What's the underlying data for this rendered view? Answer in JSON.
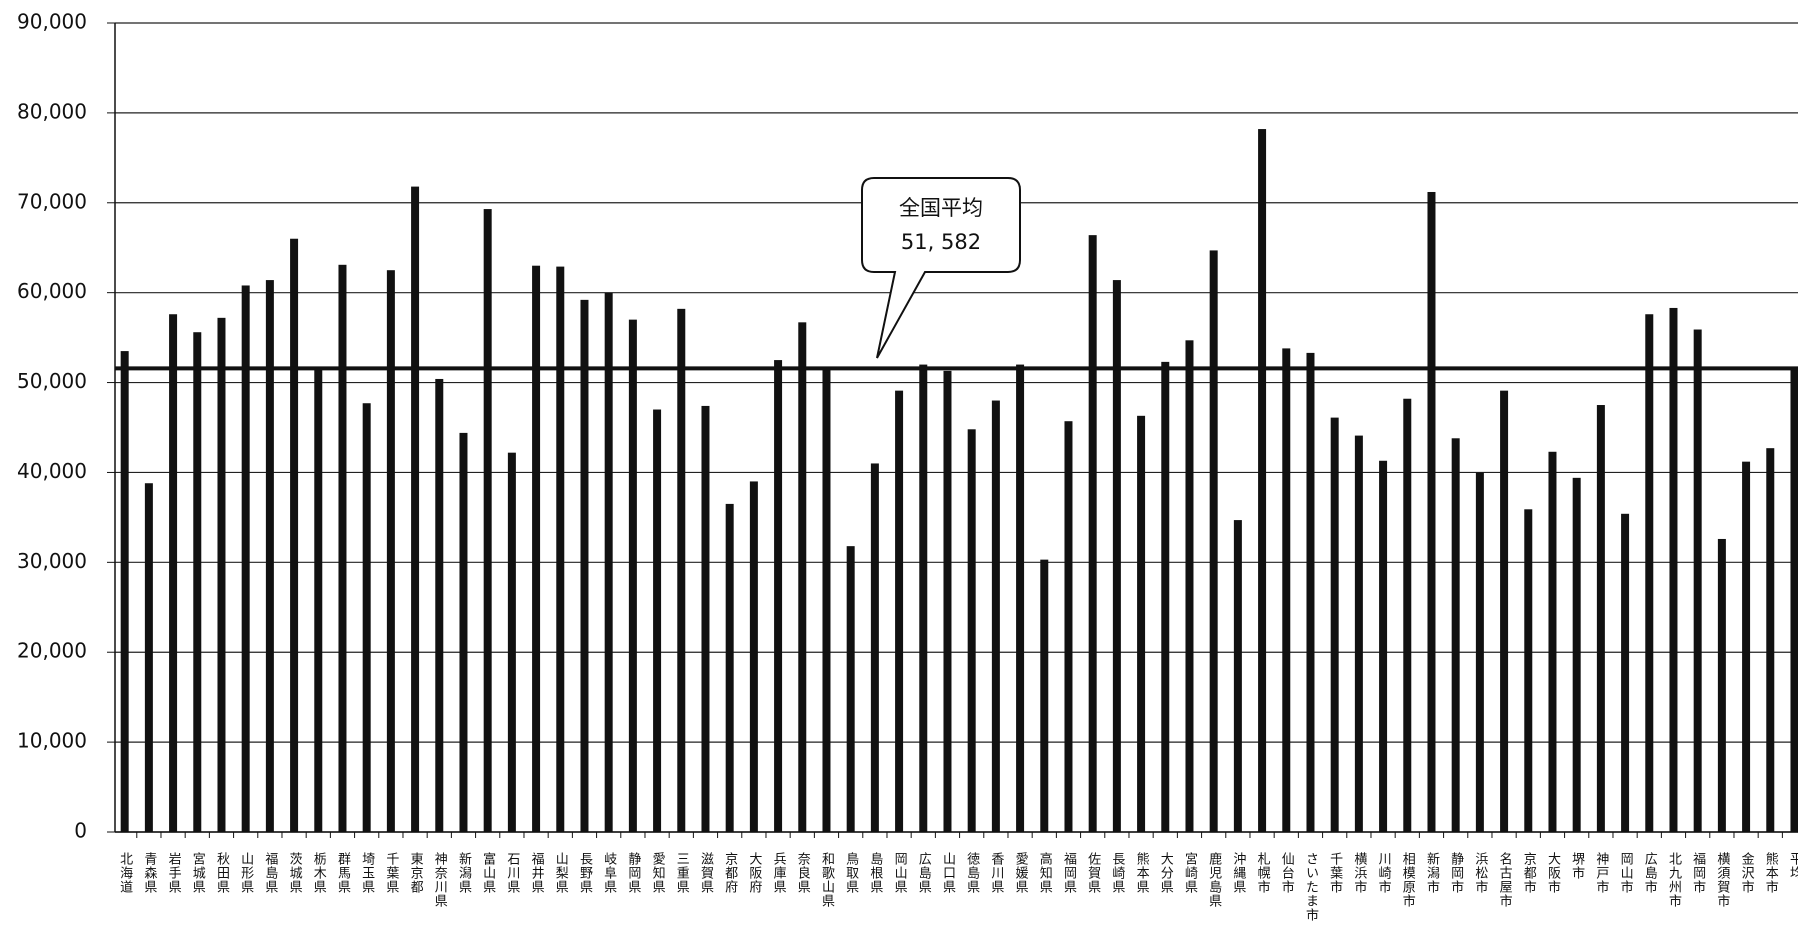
{
  "chart_data": {
    "type": "bar",
    "categories": [
      "北海道",
      "青森県",
      "岩手県",
      "宮城県",
      "秋田県",
      "山形県",
      "福島県",
      "茨城県",
      "栃木県",
      "群馬県",
      "埼玉県",
      "千葉県",
      "東京都",
      "神奈川県",
      "新潟県",
      "富山県",
      "石川県",
      "福井県",
      "山梨県",
      "長野県",
      "岐阜県",
      "静岡県",
      "愛知県",
      "三重県",
      "滋賀県",
      "京都府",
      "大阪府",
      "兵庫県",
      "奈良県",
      "和歌山県",
      "鳥取県",
      "島根県",
      "岡山県",
      "広島県",
      "山口県",
      "徳島県",
      "香川県",
      "愛媛県",
      "高知県",
      "福岡県",
      "佐賀県",
      "長崎県",
      "熊本県",
      "大分県",
      "宮崎県",
      "鹿児島県",
      "沖縄県",
      "札幌市",
      "仙台市",
      "さいたま市",
      "千葉市",
      "横浜市",
      "川崎市",
      "相模原市",
      "新潟市",
      "静岡市",
      "浜松市",
      "名古屋市",
      "京都市",
      "大阪市",
      "堺市",
      "神戸市",
      "岡山市",
      "広島市",
      "北九州市",
      "福岡市",
      "横須賀市",
      "金沢市",
      "熊本市",
      "平均"
    ],
    "values": [
      53500,
      38800,
      57600,
      55600,
      57200,
      60800,
      61400,
      66000,
      51700,
      63100,
      47700,
      62500,
      71800,
      50400,
      44400,
      69300,
      42200,
      63000,
      62900,
      59200,
      60000,
      57000,
      47000,
      58200,
      47400,
      36500,
      39000,
      52500,
      56700,
      51700,
      31800,
      41000,
      49100,
      52000,
      51300,
      44800,
      48000,
      52000,
      30300,
      45700,
      66400,
      61400,
      46300,
      52300,
      54700,
      64700,
      34700,
      78200,
      53800,
      53300,
      46100,
      44100,
      41300,
      48200,
      71200,
      43800,
      40000,
      49100,
      35900,
      42300,
      39400,
      47500,
      35400,
      57600,
      58300,
      55900,
      32600,
      41200,
      42700,
      51600
    ],
    "color": "#111111",
    "ylim": [
      0,
      90000
    ],
    "yticks": [
      {
        "value": 0,
        "label": "0"
      },
      {
        "value": 10000,
        "label": "10,000"
      },
      {
        "value": 20000,
        "label": "20,000"
      },
      {
        "value": 30000,
        "label": "30,000"
      },
      {
        "value": 40000,
        "label": "40,000"
      },
      {
        "value": 50000,
        "label": "50,000"
      },
      {
        "value": 60000,
        "label": "60,000"
      },
      {
        "value": 70000,
        "label": "70,000"
      },
      {
        "value": 80000,
        "label": "80,000"
      },
      {
        "value": 90000,
        "label": "90,000"
      }
    ],
    "grid": true,
    "reference_line": {
      "label": "全国平均",
      "value": 51582,
      "value_label": "51, 582"
    }
  }
}
